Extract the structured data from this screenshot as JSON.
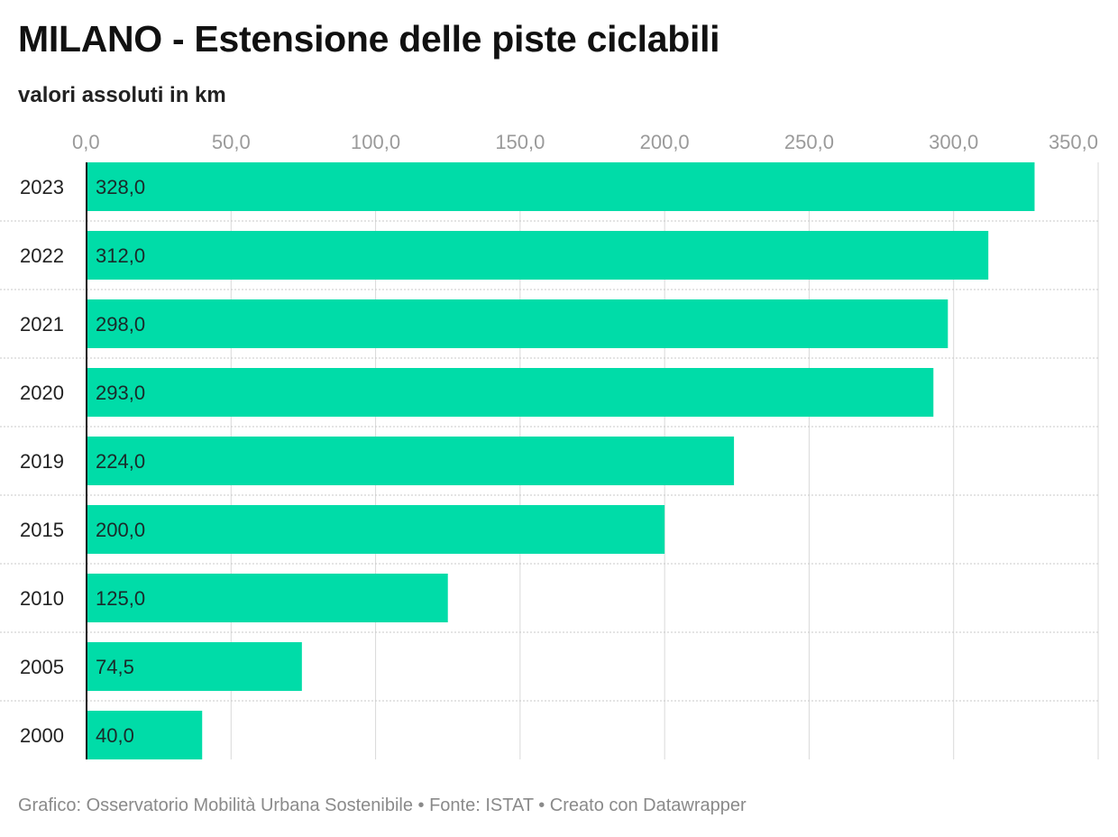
{
  "header": {
    "title": "MILANO - Estensione delle piste ciclabili",
    "subtitle": "valori assoluti in km"
  },
  "footer": {
    "credit": "Grafico: Osservatorio Mobilità Urbana Sostenibile • Fonte: ISTAT • Creato con Datawrapper"
  },
  "colors": {
    "bar": "#00dca8",
    "gridline": "#d9d9d9",
    "axis_tick": "#9a9a9a"
  },
  "chart_data": {
    "type": "bar",
    "orientation": "horizontal",
    "categories": [
      "2023",
      "2022",
      "2021",
      "2020",
      "2019",
      "2015",
      "2010",
      "2005",
      "2000"
    ],
    "values": [
      328.0,
      312.0,
      298.0,
      293.0,
      224.0,
      200.0,
      125.0,
      74.5,
      40.0
    ],
    "value_labels": [
      "328,0",
      "312,0",
      "298,0",
      "293,0",
      "224,0",
      "200,0",
      "125,0",
      "74,5",
      "40,0"
    ],
    "xlim": [
      0,
      350
    ],
    "x_ticks": [
      0,
      50,
      100,
      150,
      200,
      250,
      300,
      350
    ],
    "x_tick_labels": [
      "0,0",
      "50,0",
      "100,0",
      "150,0",
      "200,0",
      "250,0",
      "300,0",
      "350,0"
    ],
    "title": "MILANO - Estensione delle piste ciclabili",
    "xlabel": "",
    "ylabel": "",
    "grid": true,
    "axis_position": "top"
  }
}
